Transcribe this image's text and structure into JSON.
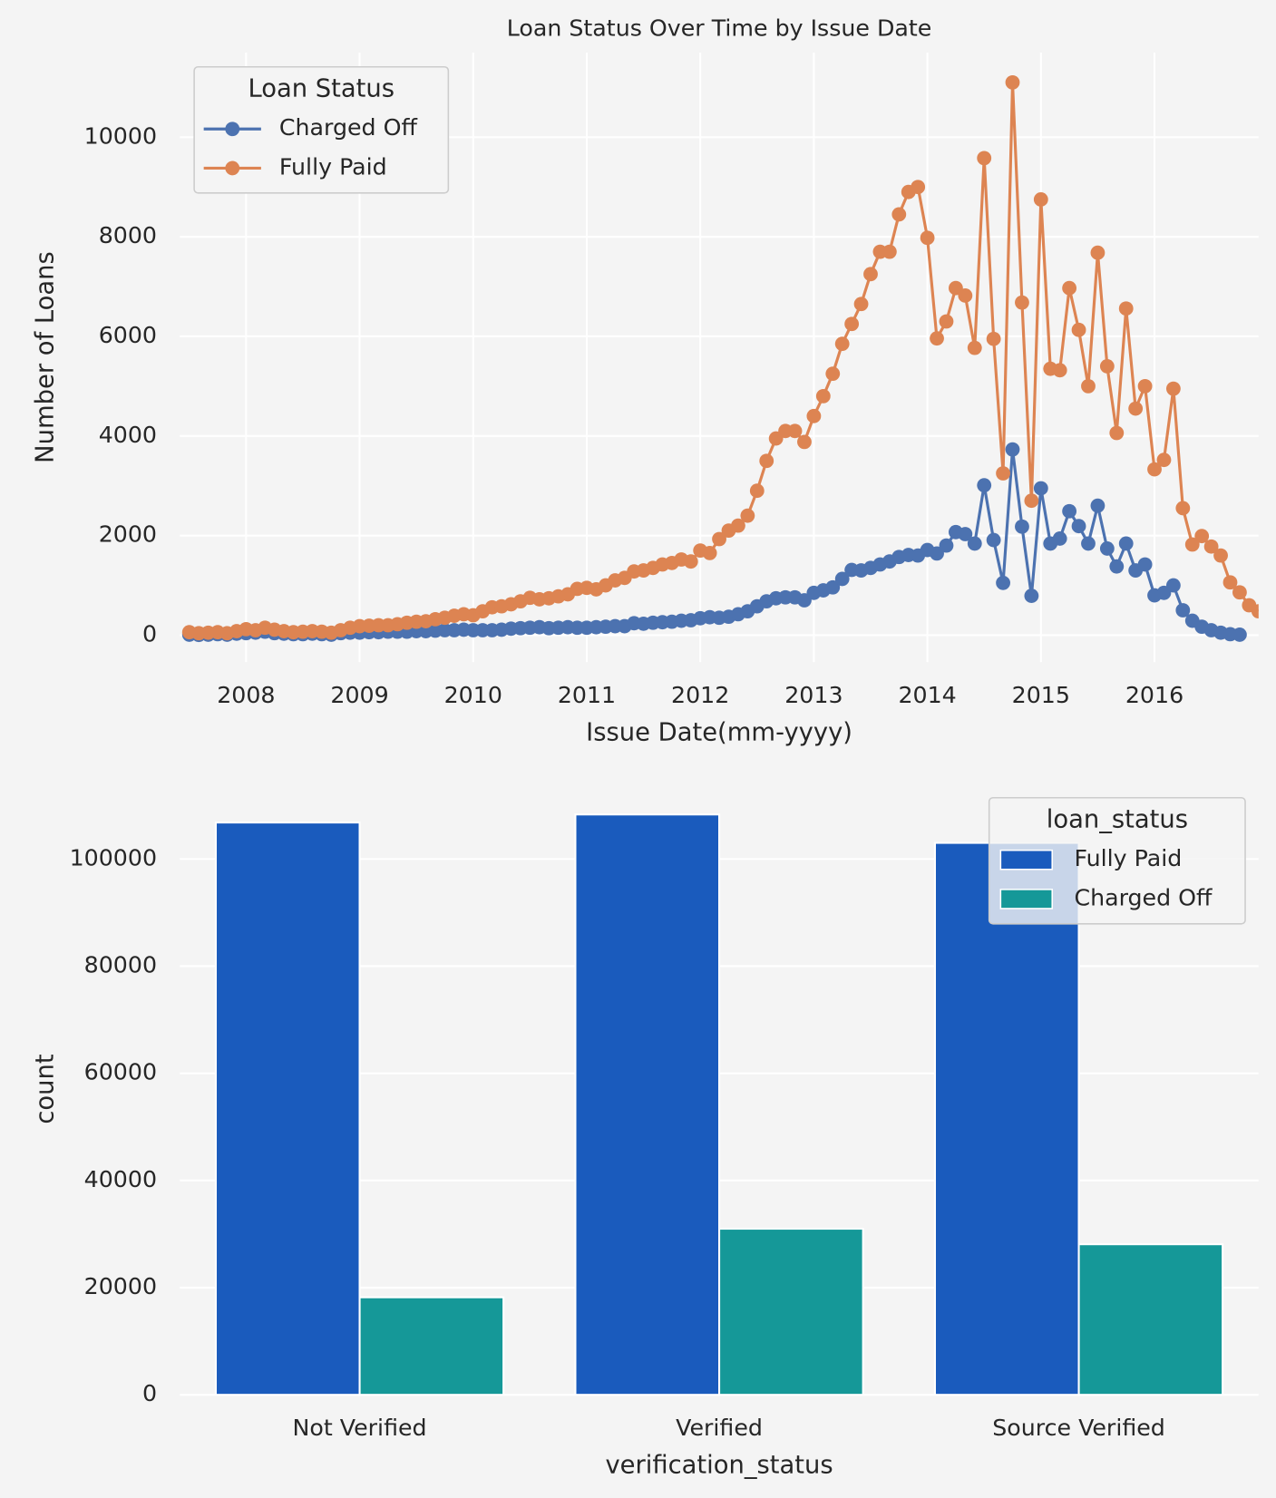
{
  "chart_data": [
    {
      "type": "line",
      "title": "Loan Status Over Time by Issue Date",
      "x_label": "Issue Date(mm-yyyy)",
      "y_label": "Number of Loans",
      "legend_title": "Loan Status",
      "legend": "upper left",
      "grid": true,
      "x": [
        "2007-07",
        "2007-08",
        "2007-09",
        "2007-10",
        "2007-11",
        "2007-12",
        "2008-01",
        "2008-02",
        "2008-03",
        "2008-04",
        "2008-05",
        "2008-06",
        "2008-07",
        "2008-08",
        "2008-09",
        "2008-10",
        "2008-11",
        "2008-12",
        "2009-01",
        "2009-02",
        "2009-03",
        "2009-04",
        "2009-05",
        "2009-06",
        "2009-07",
        "2009-08",
        "2009-09",
        "2009-10",
        "2009-11",
        "2009-12",
        "2010-01",
        "2010-02",
        "2010-03",
        "2010-04",
        "2010-05",
        "2010-06",
        "2010-07",
        "2010-08",
        "2010-09",
        "2010-10",
        "2010-11",
        "2010-12",
        "2011-01",
        "2011-02",
        "2011-03",
        "2011-04",
        "2011-05",
        "2011-06",
        "2011-07",
        "2011-08",
        "2011-09",
        "2011-10",
        "2011-11",
        "2011-12",
        "2012-01",
        "2012-02",
        "2012-03",
        "2012-04",
        "2012-05",
        "2012-06",
        "2012-07",
        "2012-08",
        "2012-09",
        "2012-10",
        "2012-11",
        "2012-12",
        "2013-01",
        "2013-02",
        "2013-03",
        "2013-04",
        "2013-05",
        "2013-06",
        "2013-07",
        "2013-08",
        "2013-09",
        "2013-10",
        "2013-11",
        "2013-12",
        "2014-01",
        "2014-02",
        "2014-03",
        "2014-04",
        "2014-05",
        "2014-06",
        "2014-07",
        "2014-08",
        "2014-09",
        "2014-10",
        "2014-11",
        "2014-12",
        "2015-01",
        "2015-02",
        "2015-03",
        "2015-04",
        "2015-05",
        "2015-06",
        "2015-07",
        "2015-08",
        "2015-09",
        "2015-10",
        "2015-11",
        "2015-12",
        "2016-01",
        "2016-02",
        "2016-03",
        "2016-04",
        "2016-05",
        "2016-06",
        "2016-07",
        "2016-08",
        "2016-09",
        "2016-10",
        "2016-11",
        "2016-12"
      ],
      "series": [
        {
          "name": "Charged Off",
          "color": "#4c72b0",
          "values": [
            10,
            5,
            10,
            20,
            10,
            30,
            40,
            50,
            70,
            40,
            30,
            20,
            20,
            30,
            20,
            10,
            40,
            50,
            50,
            60,
            60,
            70,
            70,
            70,
            80,
            80,
            90,
            100,
            100,
            110,
            100,
            100,
            100,
            110,
            130,
            140,
            150,
            160,
            140,
            150,
            160,
            150,
            150,
            160,
            170,
            180,
            180,
            240,
            230,
            250,
            260,
            270,
            290,
            300,
            340,
            360,
            350,
            370,
            420,
            480,
            580,
            680,
            740,
            760,
            760,
            700,
            850,
            900,
            960,
            1130,
            1310,
            1300,
            1350,
            1420,
            1480,
            1570,
            1610,
            1600,
            1710,
            1640,
            1800,
            2070,
            2030,
            1840,
            3010,
            1910,
            1050,
            3730,
            2180,
            790,
            2950,
            1840,
            1940,
            2490,
            2190,
            1840,
            2600,
            1740,
            1380,
            1840,
            1300,
            1420,
            800,
            850,
            1000,
            500,
            290,
            170,
            100,
            50,
            20,
            10,
            null,
            null
          ]
        },
        {
          "name": "Fully Paid",
          "color": "#dd8452",
          "values": [
            60,
            40,
            50,
            60,
            40,
            80,
            120,
            100,
            150,
            110,
            80,
            60,
            70,
            80,
            70,
            50,
            100,
            150,
            180,
            190,
            200,
            200,
            220,
            250,
            270,
            280,
            320,
            350,
            390,
            420,
            400,
            480,
            560,
            580,
            620,
            680,
            750,
            720,
            740,
            780,
            820,
            930,
            950,
            920,
            1000,
            1100,
            1150,
            1280,
            1300,
            1350,
            1420,
            1450,
            1520,
            1480,
            1700,
            1650,
            1930,
            2100,
            2200,
            2400,
            2900,
            3500,
            3950,
            4100,
            4100,
            3880,
            4400,
            4800,
            5250,
            5850,
            6250,
            6650,
            7250,
            7700,
            7700,
            8450,
            8900,
            9000,
            7980,
            5960,
            6300,
            6970,
            6820,
            5770,
            9580,
            5950,
            3250,
            11100,
            6680,
            2700,
            8750,
            5350,
            5320,
            6970,
            6130,
            5000,
            7680,
            5400,
            4060,
            6560,
            4550,
            5000,
            3330,
            3520,
            4950,
            2550,
            1820,
            1990,
            1780,
            1600,
            1060,
            860,
            600,
            480
          ]
        }
      ],
      "xlim": [
        "2007-06",
        "2016-12"
      ],
      "xticks": [
        "2008",
        "2009",
        "2010",
        "2011",
        "2012",
        "2013",
        "2014",
        "2015",
        "2016"
      ],
      "ylim": [
        -540,
        11700
      ],
      "yticks": [
        0,
        2000,
        4000,
        6000,
        8000,
        10000
      ]
    },
    {
      "type": "bar",
      "x_label": "verification_status",
      "y_label": "count",
      "legend_title": "loan_status",
      "legend": "upper right",
      "grid": true,
      "categories": [
        "Not Verified",
        "Verified",
        "Source Verified"
      ],
      "series": [
        {
          "name": "Fully Paid",
          "color": "#1a5bbd",
          "values": [
            106800,
            108300,
            103000
          ]
        },
        {
          "name": "Charged Off",
          "color": "#159898",
          "values": [
            18200,
            31000,
            28100
          ]
        }
      ],
      "ylim": [
        0,
        114100
      ],
      "yticks": [
        0,
        20000,
        40000,
        60000,
        80000,
        100000
      ]
    }
  ]
}
